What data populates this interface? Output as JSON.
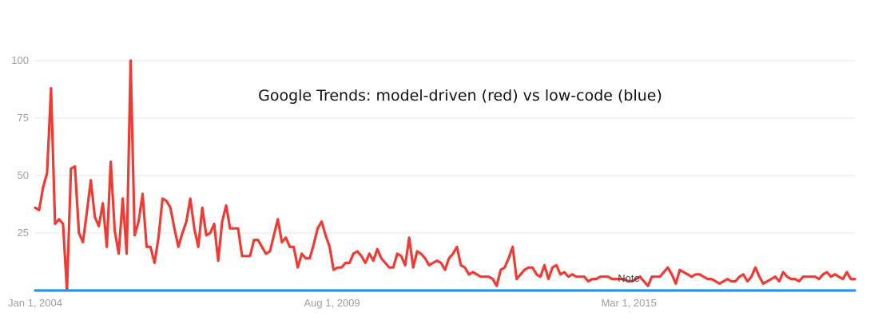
{
  "chart_data": {
    "type": "line",
    "title": "Google Trends: model-driven (red) vs low-code (blue)",
    "xlabel": "",
    "ylabel": "",
    "ylim": [
      0,
      100
    ],
    "y_ticks": [
      "100",
      "75",
      "50",
      "25"
    ],
    "x_ticks": [
      "Jan 1, 2004",
      "Aug 1, 2009",
      "Mar 1, 2015"
    ],
    "x_range": [
      "2004-01",
      "2019-06"
    ],
    "grid": true,
    "annotation": "Note",
    "series": [
      {
        "color": "#ee3b33",
        "values": [
          36,
          35,
          45,
          51,
          88,
          29,
          31,
          29,
          0,
          53,
          54,
          25,
          21,
          34,
          48,
          32,
          28,
          38,
          19,
          56,
          26,
          16,
          40,
          16,
          100,
          24,
          30,
          42,
          19,
          19,
          12,
          23,
          40,
          39,
          36,
          27,
          19,
          25,
          30,
          40,
          27,
          19,
          36,
          24,
          25,
          29,
          13,
          30,
          37,
          27,
          27,
          27,
          15,
          15,
          15,
          22,
          22,
          19,
          16,
          17,
          24,
          31,
          21,
          23,
          19,
          19,
          10,
          16,
          14,
          14,
          20,
          27,
          30,
          24,
          19,
          9,
          10,
          10,
          12,
          12,
          16,
          17,
          15,
          12,
          16,
          13,
          18,
          14,
          12,
          10,
          10,
          16,
          15,
          11,
          23,
          10,
          17,
          16,
          14,
          11,
          12,
          13,
          12,
          9,
          14,
          16,
          19,
          11,
          10,
          7,
          8,
          7,
          6,
          6,
          6,
          5,
          2,
          9,
          10,
          14,
          19,
          5,
          7,
          9,
          10,
          10,
          7,
          6,
          11,
          5,
          10,
          11,
          7,
          8,
          6,
          7,
          6,
          6,
          6,
          4,
          5,
          5,
          6,
          6,
          6,
          5,
          5,
          5,
          5,
          4,
          4,
          5,
          6,
          4,
          2,
          6,
          6,
          6,
          8,
          10,
          7,
          3,
          9,
          8,
          7,
          6,
          7,
          7,
          6,
          5,
          5,
          4,
          3,
          4,
          5,
          4,
          4,
          6,
          7,
          4,
          6,
          10,
          6,
          3,
          4,
          5,
          6,
          4,
          8,
          6,
          5,
          5,
          4,
          6,
          6,
          6,
          6,
          5,
          7,
          8,
          6,
          7,
          6,
          5,
          8,
          5,
          5
        ],
        "values_approx": true
      },
      {
        "color": "#2196f3",
        "values": [
          0,
          0,
          0,
          0,
          0,
          0,
          0,
          0,
          0,
          0,
          0,
          0,
          0,
          0,
          0,
          0,
          0,
          0,
          0,
          0,
          0,
          0,
          0,
          0,
          0,
          0,
          0,
          0,
          0,
          0,
          0,
          0,
          0,
          0,
          0,
          0,
          0,
          0,
          0,
          0,
          0,
          0,
          0,
          0,
          0,
          0,
          0,
          0,
          0,
          0,
          0,
          0,
          0,
          0,
          0,
          0,
          0,
          0,
          0,
          0,
          0,
          0,
          0,
          0,
          0,
          0,
          0,
          0,
          0,
          0,
          0,
          0,
          0,
          0,
          0,
          0,
          0,
          0,
          0,
          0,
          0,
          0,
          0,
          0,
          0,
          0,
          0,
          0,
          0,
          0,
          0,
          0,
          0,
          0,
          0,
          0,
          0,
          0,
          0,
          0,
          0,
          0,
          0,
          0,
          0,
          0,
          0,
          0,
          0,
          0,
          0,
          0,
          0,
          0,
          0,
          0,
          0,
          0,
          0,
          0,
          0,
          0,
          0,
          0,
          0,
          0,
          0,
          0,
          0,
          0,
          0,
          0,
          0,
          0,
          0,
          0,
          0,
          0,
          0,
          0,
          0,
          0,
          0,
          0,
          0,
          0,
          0,
          0,
          0,
          0,
          0,
          0,
          0,
          0,
          0,
          0,
          0,
          0,
          0,
          0,
          0,
          0,
          0,
          0,
          0,
          0,
          0,
          0,
          0,
          0,
          0,
          0,
          0,
          0,
          0,
          0,
          0,
          0,
          0,
          0,
          0,
          0,
          0,
          0,
          0,
          0,
          0,
          0,
          0,
          0,
          0,
          0,
          0,
          0,
          0,
          0,
          0,
          0,
          0,
          0,
          0,
          0,
          0,
          0,
          0,
          0,
          0,
          0,
          0,
          0,
          0,
          0,
          0,
          0,
          0,
          0,
          0,
          0,
          0,
          0,
          0,
          0,
          0,
          0,
          0,
          0,
          0,
          0,
          0,
          0,
          0
        ]
      }
    ]
  }
}
